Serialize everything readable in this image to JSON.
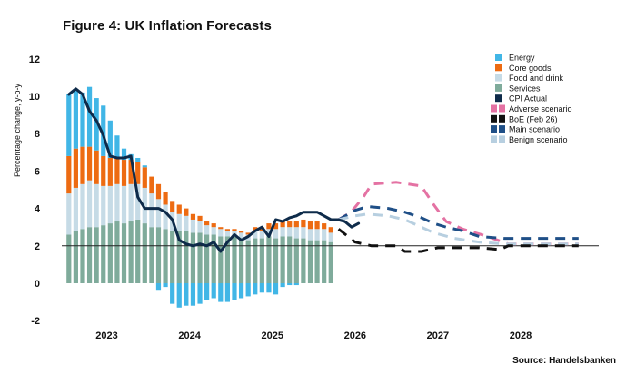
{
  "title": "Figure 4: UK Inflation Forecasts",
  "source": "Source: Handelsbanken",
  "colors": {
    "energy": "#41b6e6",
    "core_goods": "#ed6b12",
    "food_and_drink": "#c6dbe6",
    "services": "#7fab9b",
    "cpi_actual": "#0e2b4a",
    "adverse": "#e472a3",
    "boe": "#111111",
    "main": "#1f4f87",
    "benign": "#b7cfe0"
  },
  "chart_data": {
    "type": "bar",
    "title": "Figure 4: UK Inflation Forecasts",
    "ylabel": "Percentage change, y-o-y",
    "xlabel": "",
    "ylim": [
      -2,
      12
    ],
    "yticks": [
      "12",
      "10",
      "8",
      "6",
      "4",
      "2",
      "0",
      "-2"
    ],
    "xticks": [
      {
        "label": "2023",
        "x": 2023.0
      },
      {
        "label": "2024",
        "x": 2024.0
      },
      {
        "label": "2025",
        "x": 2025.0
      },
      {
        "label": "2026",
        "x": 2026.0
      },
      {
        "label": "2027",
        "x": 2027.0
      },
      {
        "label": "2028",
        "x": 2028.0
      }
    ],
    "x_start": 2022.5,
    "x_end": 2028.9,
    "reference_line": 2.0,
    "legend_position": "top-right",
    "legend": [
      {
        "label": "Energy",
        "key": "energy",
        "style": "box"
      },
      {
        "label": "Core goods",
        "key": "core_goods",
        "style": "box"
      },
      {
        "label": "Food and drink",
        "key": "food_and_drink",
        "style": "box"
      },
      {
        "label": "Services",
        "key": "services",
        "style": "box"
      },
      {
        "label": "CPI Actual",
        "key": "cpi_actual",
        "style": "box"
      },
      {
        "label": "Adverse scenario",
        "key": "adverse",
        "style": "dash"
      },
      {
        "label": "BoE (Feb 26)",
        "key": "boe",
        "style": "dash"
      },
      {
        "label": "Main scenario",
        "key": "main",
        "style": "dash"
      },
      {
        "label": "Benign scenario",
        "key": "benign",
        "style": "dash"
      }
    ],
    "months": [
      "2022-07",
      "2022-08",
      "2022-09",
      "2022-10",
      "2022-11",
      "2022-12",
      "2023-01",
      "2023-02",
      "2023-03",
      "2023-04",
      "2023-05",
      "2023-06",
      "2023-07",
      "2023-08",
      "2023-09",
      "2023-10",
      "2023-11",
      "2023-12",
      "2024-01",
      "2024-02",
      "2024-03",
      "2024-04",
      "2024-05",
      "2024-06",
      "2024-07",
      "2024-08",
      "2024-09",
      "2024-10",
      "2024-11",
      "2024-12",
      "2025-01",
      "2025-02",
      "2025-03",
      "2025-04",
      "2025-05",
      "2025-06",
      "2025-07",
      "2025-08",
      "2025-09"
    ],
    "series": [
      {
        "name": "Services",
        "key": "services",
        "values": [
          2.6,
          2.8,
          2.9,
          3.0,
          3.0,
          3.1,
          3.2,
          3.3,
          3.2,
          3.3,
          3.4,
          3.2,
          3.0,
          3.0,
          2.9,
          2.8,
          2.8,
          2.8,
          2.7,
          2.7,
          2.6,
          2.6,
          2.5,
          2.5,
          2.5,
          2.4,
          2.3,
          2.4,
          2.4,
          2.5,
          2.4,
          2.5,
          2.5,
          2.4,
          2.4,
          2.3,
          2.3,
          2.3,
          2.2
        ]
      },
      {
        "name": "Food and drink",
        "key": "food_and_drink",
        "values": [
          2.2,
          2.3,
          2.4,
          2.5,
          2.3,
          2.1,
          2.0,
          2.0,
          2.0,
          2.0,
          1.9,
          1.9,
          1.8,
          1.5,
          1.3,
          1.0,
          0.9,
          0.8,
          0.7,
          0.6,
          0.5,
          0.4,
          0.4,
          0.3,
          0.3,
          0.3,
          0.3,
          0.4,
          0.4,
          0.4,
          0.5,
          0.5,
          0.5,
          0.6,
          0.6,
          0.6,
          0.6,
          0.6,
          0.5
        ]
      },
      {
        "name": "Core goods",
        "key": "core_goods",
        "values": [
          2.0,
          2.1,
          2.0,
          1.8,
          1.8,
          1.6,
          1.5,
          1.4,
          1.4,
          1.3,
          1.2,
          1.1,
          0.9,
          0.8,
          0.7,
          0.6,
          0.5,
          0.4,
          0.3,
          0.3,
          0.2,
          0.2,
          0.1,
          0.1,
          0.1,
          0.1,
          0.1,
          0.2,
          0.2,
          0.3,
          0.3,
          0.3,
          0.3,
          0.3,
          0.4,
          0.4,
          0.4,
          0.3,
          0.3
        ]
      },
      {
        "name": "Energy",
        "key": "energy",
        "values": [
          3.3,
          3.1,
          2.9,
          3.2,
          2.8,
          2.7,
          2.0,
          1.2,
          0.6,
          0.3,
          0.2,
          0.1,
          0.0,
          -0.4,
          -0.2,
          -1.1,
          -1.3,
          -1.2,
          -1.2,
          -1.1,
          -0.9,
          -0.8,
          -1.0,
          -1.0,
          -0.9,
          -0.8,
          -0.7,
          -0.6,
          -0.5,
          -0.5,
          -0.6,
          -0.2,
          -0.1,
          -0.1,
          0.0,
          0.0,
          0.0,
          0.0,
          0.0
        ]
      }
    ],
    "cpi_actual": [
      10.1,
      10.4,
      10.1,
      9.2,
      8.7,
      7.9,
      6.8,
      6.7,
      6.7,
      6.8,
      4.6,
      4.0,
      4.0,
      4.0,
      3.8,
      3.4,
      2.3,
      2.1,
      2.0,
      2.1,
      2.0,
      2.2,
      1.7,
      2.2,
      2.6,
      2.3,
      2.5,
      2.8,
      3.0,
      2.5,
      3.4,
      3.3,
      3.5,
      3.6,
      3.8,
      3.8,
      3.8,
      3.6,
      3.4,
      3.4,
      3.3,
      3.0,
      3.2
    ],
    "cpi_actual_start": "2022-07",
    "scenarios": [
      {
        "name": "Adverse scenario",
        "key": "adverse",
        "points": [
          [
            2025.8,
            3.4
          ],
          [
            2025.95,
            3.8
          ],
          [
            2026.1,
            4.6
          ],
          [
            2026.2,
            5.3
          ],
          [
            2026.5,
            5.4
          ],
          [
            2026.8,
            5.2
          ],
          [
            2026.95,
            4.2
          ],
          [
            2027.1,
            3.3
          ],
          [
            2027.3,
            2.9
          ],
          [
            2027.6,
            2.5
          ],
          [
            2027.85,
            2.1
          ],
          [
            2028.7,
            2.1
          ]
        ]
      },
      {
        "name": "Main scenario",
        "key": "main",
        "points": [
          [
            2025.8,
            3.4
          ],
          [
            2026.0,
            3.9
          ],
          [
            2026.15,
            4.1
          ],
          [
            2026.4,
            4.0
          ],
          [
            2026.6,
            3.8
          ],
          [
            2026.8,
            3.5
          ],
          [
            2026.95,
            3.2
          ],
          [
            2027.1,
            3.0
          ],
          [
            2027.3,
            2.8
          ],
          [
            2027.5,
            2.5
          ],
          [
            2027.8,
            2.4
          ],
          [
            2028.7,
            2.4
          ]
        ]
      },
      {
        "name": "Benign scenario",
        "key": "benign",
        "points": [
          [
            2025.8,
            3.4
          ],
          [
            2026.0,
            3.6
          ],
          [
            2026.15,
            3.7
          ],
          [
            2026.4,
            3.6
          ],
          [
            2026.6,
            3.4
          ],
          [
            2026.8,
            3.0
          ],
          [
            2026.95,
            2.7
          ],
          [
            2027.2,
            2.4
          ],
          [
            2027.5,
            2.2
          ],
          [
            2027.8,
            2.1
          ],
          [
            2028.7,
            2.1
          ]
        ]
      },
      {
        "name": "BoE (Feb 26)",
        "key": "boe",
        "points": [
          [
            2025.8,
            2.9
          ],
          [
            2026.0,
            2.2
          ],
          [
            2026.2,
            2.0
          ],
          [
            2026.5,
            2.0
          ],
          [
            2026.6,
            1.7
          ],
          [
            2026.8,
            1.7
          ],
          [
            2027.0,
            1.9
          ],
          [
            2027.2,
            1.9
          ],
          [
            2027.5,
            1.9
          ],
          [
            2027.75,
            1.8
          ],
          [
            2027.85,
            2.0
          ],
          [
            2028.7,
            2.0
          ]
        ]
      }
    ]
  }
}
